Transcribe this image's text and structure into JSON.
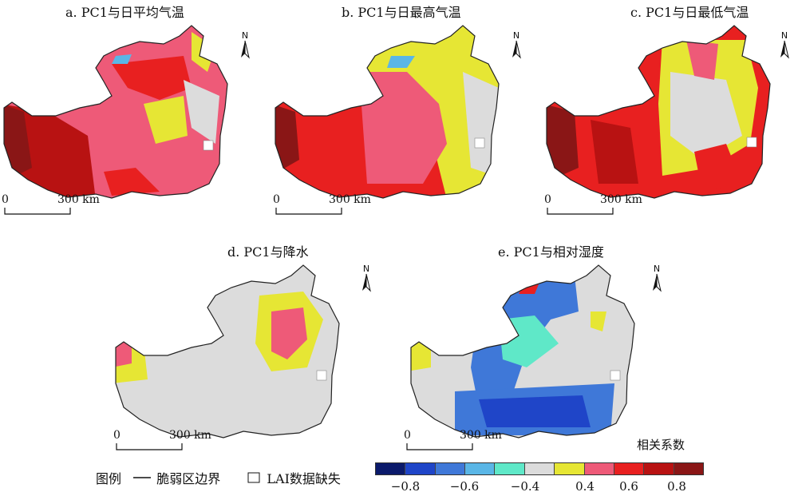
{
  "panels": [
    {
      "title": "a. PC1与日平均气温"
    },
    {
      "title": "b. PC1与日最高气温"
    },
    {
      "title": "c. PC1与日最低气温"
    },
    {
      "title": "d. PC1与降水"
    },
    {
      "title": "e. PC1与相对湿度"
    }
  ],
  "north_label": "N",
  "scale": {
    "zero": "0",
    "distance": "300 km"
  },
  "legend": {
    "title": "图例",
    "boundary_label": "脆弱区边界",
    "missing_label": "LAI数据缺失"
  },
  "colorbar": {
    "title": "相关系数",
    "ticks": [
      "−0.8",
      "−0.6",
      "−0.4",
      "0.4",
      "0.6",
      "0.8"
    ],
    "colors": [
      "#0b1a6b",
      "#1f45c8",
      "#3f78d8",
      "#5ab6e6",
      "#5fe8c8",
      "#dcdcdc",
      "#e6e634",
      "#ee5a78",
      "#e82020",
      "#b81212",
      "#8a1616"
    ]
  }
}
